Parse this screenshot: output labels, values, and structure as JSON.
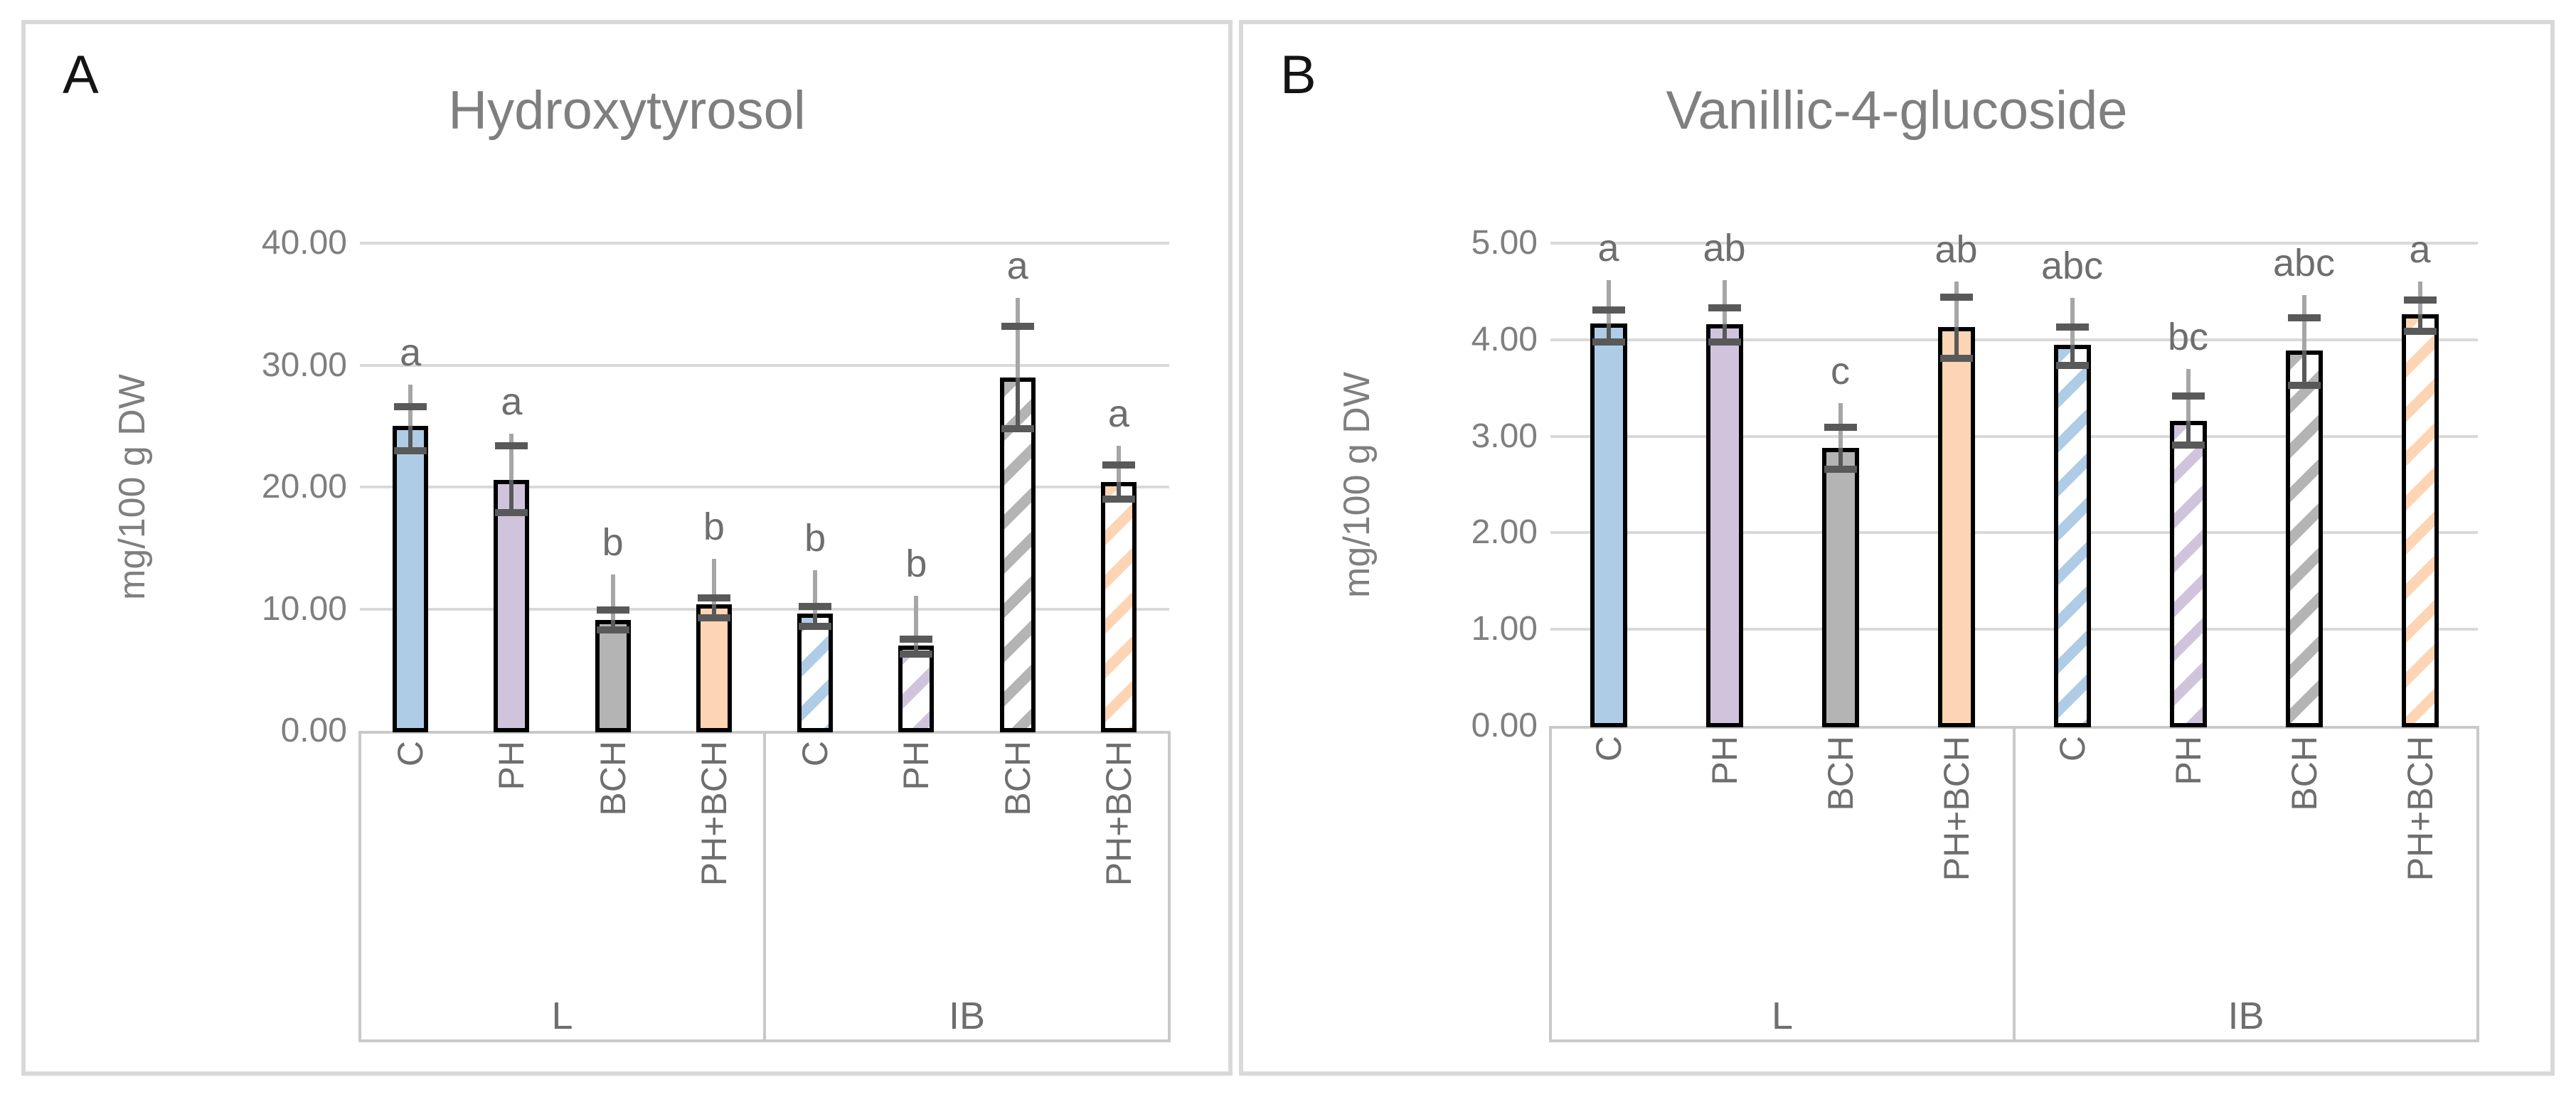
{
  "colors": {
    "bar_blue": "#afcce6",
    "bar_purple": "#d0c4dd",
    "bar_gray": "#b4b4b4",
    "bar_orange": "#fdd5b5",
    "bar_outline": "#000000",
    "hatch_background": "#ffffff",
    "gridline": "#d9d9d9",
    "axis_box": "#c9c9c9",
    "panel_border": "#d9d9d9",
    "error_line": "#a6a6a6",
    "error_cap": "#595959",
    "title_text": "#7f7f7f",
    "tick_text": "#7f7f7f",
    "label_text": "#6e6e6e",
    "panel_letter_text": "#141414"
  },
  "chart_data": [
    {
      "type": "bar",
      "panel_label": "A",
      "title": "Hydroxytyrosol",
      "ylabel": "mg/100 g DW",
      "ylim": [
        0,
        40
      ],
      "ytick_labels_top_down": [
        "40.00",
        "30.00",
        "20.00",
        "10.00",
        "0.00"
      ],
      "grid": true,
      "legend_position": "none",
      "group_labels": [
        "L",
        "IB"
      ],
      "categories": [
        "C",
        "PH",
        "BCH",
        "PH+BCH",
        "C",
        "PH",
        "BCH",
        "PH+BCH"
      ],
      "bars": [
        {
          "group": "L",
          "category": "C",
          "value": 25.0,
          "err_cap_top": 26.6,
          "err_cap_bottom": 23.0,
          "whisker_top": 28.4,
          "letter": "a",
          "color": "blue",
          "hatched": false
        },
        {
          "group": "L",
          "category": "PH",
          "value": 20.6,
          "err_cap_top": 23.4,
          "err_cap_bottom": 17.9,
          "whisker_top": 24.4,
          "letter": "a",
          "color": "purple",
          "hatched": false
        },
        {
          "group": "L",
          "category": "BCH",
          "value": 9.1,
          "err_cap_top": 9.9,
          "err_cap_bottom": 8.3,
          "whisker_top": 12.8,
          "letter": "b",
          "color": "gray",
          "hatched": false
        },
        {
          "group": "L",
          "category": "PH+BCH",
          "value": 10.4,
          "err_cap_top": 10.9,
          "err_cap_bottom": 9.3,
          "whisker_top": 14.1,
          "letter": "b",
          "color": "orange",
          "hatched": false
        },
        {
          "group": "IB",
          "category": "C",
          "value": 9.6,
          "err_cap_top": 10.2,
          "err_cap_bottom": 8.6,
          "whisker_top": 13.2,
          "letter": "b",
          "color": "blue",
          "hatched": true
        },
        {
          "group": "IB",
          "category": "PH",
          "value": 7.0,
          "err_cap_top": 7.5,
          "err_cap_bottom": 6.3,
          "whisker_top": 11.1,
          "letter": "b",
          "color": "purple",
          "hatched": true
        },
        {
          "group": "IB",
          "category": "BCH",
          "value": 29.0,
          "err_cap_top": 33.2,
          "err_cap_bottom": 24.8,
          "whisker_top": 35.5,
          "letter": "a",
          "color": "gray",
          "hatched": true
        },
        {
          "group": "IB",
          "category": "PH+BCH",
          "value": 20.4,
          "err_cap_top": 21.8,
          "err_cap_bottom": 19.0,
          "whisker_top": 23.4,
          "letter": "a",
          "color": "orange",
          "hatched": true
        }
      ]
    },
    {
      "type": "bar",
      "panel_label": "B",
      "title": "Vanillic-4-glucoside",
      "ylabel": "mg/100 g DW",
      "ylim": [
        0,
        5
      ],
      "ytick_labels_top_down": [
        "5.00",
        "4.00",
        "3.00",
        "2.00",
        "1.00",
        "0.00"
      ],
      "grid": true,
      "legend_position": "none",
      "group_labels": [
        "L",
        "IB"
      ],
      "categories": [
        "C",
        "PH",
        "BCH",
        "PH+BCH",
        "C",
        "PH",
        "BCH",
        "PH+BCH"
      ],
      "bars": [
        {
          "group": "L",
          "category": "C",
          "value": 4.17,
          "err_cap_top": 4.31,
          "err_cap_bottom": 3.98,
          "whisker_top": 4.62,
          "letter": "a",
          "color": "blue",
          "hatched": false
        },
        {
          "group": "L",
          "category": "PH",
          "value": 4.16,
          "err_cap_top": 4.33,
          "err_cap_bottom": 3.98,
          "whisker_top": 4.62,
          "letter": "ab",
          "color": "purple",
          "hatched": false
        },
        {
          "group": "L",
          "category": "BCH",
          "value": 2.88,
          "err_cap_top": 3.09,
          "err_cap_bottom": 2.66,
          "whisker_top": 3.34,
          "letter": "c",
          "color": "gray",
          "hatched": false
        },
        {
          "group": "L",
          "category": "PH+BCH",
          "value": 4.13,
          "err_cap_top": 4.44,
          "err_cap_bottom": 3.81,
          "whisker_top": 4.6,
          "letter": "ab",
          "color": "orange",
          "hatched": false
        },
        {
          "group": "IB",
          "category": "C",
          "value": 3.95,
          "err_cap_top": 4.13,
          "err_cap_bottom": 3.73,
          "whisker_top": 4.43,
          "letter": "abc",
          "color": "blue",
          "hatched": true
        },
        {
          "group": "IB",
          "category": "PH",
          "value": 3.16,
          "err_cap_top": 3.42,
          "err_cap_bottom": 2.91,
          "whisker_top": 3.7,
          "letter": "bc",
          "color": "purple",
          "hatched": true
        },
        {
          "group": "IB",
          "category": "BCH",
          "value": 3.89,
          "err_cap_top": 4.23,
          "err_cap_bottom": 3.53,
          "whisker_top": 4.46,
          "letter": "abc",
          "color": "gray",
          "hatched": true
        },
        {
          "group": "IB",
          "category": "PH+BCH",
          "value": 4.26,
          "err_cap_top": 4.41,
          "err_cap_bottom": 4.09,
          "whisker_top": 4.6,
          "letter": "a",
          "color": "orange",
          "hatched": true
        }
      ]
    }
  ]
}
